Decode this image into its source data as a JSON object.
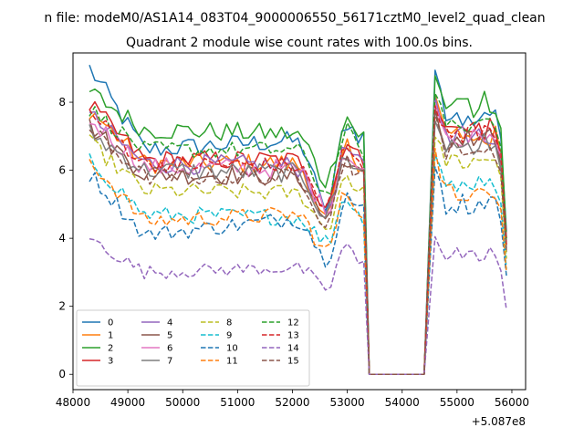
{
  "header": {
    "suptitle": "n file: modeM0/AS1A14_083T04_9000006550_56171cztM0_level2_quad_clean",
    "title": "Quadrant 2 module wise count rates with 100.0s bins."
  },
  "chart_data": {
    "type": "line",
    "title": "Quadrant 2 module wise count rates with 100.0s bins.",
    "xlabel": "",
    "ylabel": "",
    "x_offset_label": "+5.087e8",
    "xlim": [
      48000,
      56250
    ],
    "ylim": [
      -0.45,
      9.45
    ],
    "x_ticks": [
      48000,
      49000,
      50000,
      51000,
      52000,
      53000,
      54000,
      55000,
      56000
    ],
    "x_tick_labels": [
      "48000",
      "49000",
      "50000",
      "51000",
      "52000",
      "53000",
      "54000",
      "55000",
      "56000"
    ],
    "y_ticks": [
      0,
      2,
      4,
      6,
      8
    ],
    "y_tick_labels": [
      "0",
      "2",
      "4",
      "6",
      "8"
    ],
    "grid": false,
    "legend": {
      "placement": "lower-left",
      "columns": 4
    },
    "time_axis": {
      "segment1": {
        "start": 48300,
        "end": 53300,
        "step": 100
      },
      "gap": [
        [
          53400,
          0
        ],
        [
          53500,
          0
        ],
        [
          53600,
          0
        ],
        [
          53700,
          0
        ],
        [
          53800,
          0
        ],
        [
          53900,
          0
        ],
        [
          54000,
          0
        ],
        [
          54100,
          0
        ],
        [
          54200,
          0
        ],
        [
          54300,
          0
        ],
        [
          54400,
          0
        ]
      ],
      "segment2": {
        "start": 54600,
        "end": 55900,
        "step": 100
      }
    },
    "series": [
      {
        "name": "0",
        "color": "#1f77b4",
        "style": "solid",
        "seg1_start": 9.0,
        "seg1_mid": 6.6,
        "seg1_end": 7.0,
        "seg1_dip": 4.9,
        "seg2_start": 9.0,
        "seg2_end": 4.2,
        "seg2_level": 7.6,
        "noise": 0.3
      },
      {
        "name": "1",
        "color": "#ff7f0e",
        "style": "solid",
        "seg1_start": 7.8,
        "seg1_mid": 6.2,
        "seg1_end": 6.2,
        "seg1_dip": 4.5,
        "seg2_start": 8.2,
        "seg2_end": 3.8,
        "seg2_level": 7.0,
        "noise": 0.3
      },
      {
        "name": "2",
        "color": "#2ca02c",
        "style": "solid",
        "seg1_start": 8.3,
        "seg1_mid": 7.2,
        "seg1_end": 7.0,
        "seg1_dip": 5.7,
        "seg2_start": 8.7,
        "seg2_end": 4.0,
        "seg2_level": 7.9,
        "noise": 0.3
      },
      {
        "name": "3",
        "color": "#d62728",
        "style": "solid",
        "seg1_start": 7.9,
        "seg1_mid": 6.3,
        "seg1_end": 6.3,
        "seg1_dip": 5.0,
        "seg2_start": 8.2,
        "seg2_end": 4.0,
        "seg2_level": 7.2,
        "noise": 0.3
      },
      {
        "name": "4",
        "color": "#9467bd",
        "style": "solid",
        "seg1_start": 7.6,
        "seg1_mid": 6.2,
        "seg1_end": 6.1,
        "seg1_dip": 4.8,
        "seg2_start": 8.0,
        "seg2_end": 3.9,
        "seg2_level": 7.1,
        "noise": 0.3
      },
      {
        "name": "5",
        "color": "#8c564b",
        "style": "solid",
        "seg1_start": 7.3,
        "seg1_mid": 5.9,
        "seg1_end": 5.8,
        "seg1_dip": 4.6,
        "seg2_start": 7.6,
        "seg2_end": 3.6,
        "seg2_level": 6.8,
        "noise": 0.3
      },
      {
        "name": "6",
        "color": "#e377c2",
        "style": "solid",
        "seg1_start": 7.5,
        "seg1_mid": 6.1,
        "seg1_end": 6.0,
        "seg1_dip": 4.9,
        "seg2_start": 7.8,
        "seg2_end": 3.8,
        "seg2_level": 7.0,
        "noise": 0.3
      },
      {
        "name": "7",
        "color": "#7f7f7f",
        "style": "solid",
        "seg1_start": 7.1,
        "seg1_mid": 6.0,
        "seg1_end": 5.9,
        "seg1_dip": 4.7,
        "seg2_start": 7.5,
        "seg2_end": 3.7,
        "seg2_level": 6.7,
        "noise": 0.3
      },
      {
        "name": "8",
        "color": "#bcbd22",
        "style": "dashed",
        "seg1_start": 6.8,
        "seg1_mid": 5.4,
        "seg1_end": 5.3,
        "seg1_dip": 4.3,
        "seg2_start": 7.2,
        "seg2_end": 3.4,
        "seg2_level": 6.2,
        "noise": 0.25
      },
      {
        "name": "9",
        "color": "#17becf",
        "style": "dashed",
        "seg1_start": 6.3,
        "seg1_mid": 4.7,
        "seg1_end": 4.6,
        "seg1_dip": 3.9,
        "seg2_start": 6.6,
        "seg2_end": 3.1,
        "seg2_level": 5.6,
        "noise": 0.25
      },
      {
        "name": "10",
        "color": "#1f77b4",
        "style": "dashed",
        "seg1_start": 5.9,
        "seg1_mid": 4.1,
        "seg1_end": 4.8,
        "seg1_dip": 3.4,
        "seg2_start": 6.1,
        "seg2_end": 2.9,
        "seg2_level": 5.0,
        "noise": 0.25
      },
      {
        "name": "11",
        "color": "#ff7f0e",
        "style": "dashed",
        "seg1_start": 6.3,
        "seg1_mid": 4.5,
        "seg1_end": 4.8,
        "seg1_dip": 3.6,
        "seg2_start": 6.5,
        "seg2_end": 3.0,
        "seg2_level": 5.4,
        "noise": 0.25
      },
      {
        "name": "12",
        "color": "#2ca02c",
        "style": "dashed",
        "seg1_start": 7.8,
        "seg1_mid": 6.6,
        "seg1_end": 6.6,
        "seg1_dip": 5.3,
        "seg2_start": 8.1,
        "seg2_end": 3.9,
        "seg2_level": 7.4,
        "noise": 0.25
      },
      {
        "name": "13",
        "color": "#d62728",
        "style": "dashed",
        "seg1_start": 7.7,
        "seg1_mid": 6.2,
        "seg1_end": 6.1,
        "seg1_dip": 4.9,
        "seg2_start": 8.0,
        "seg2_end": 3.8,
        "seg2_level": 7.1,
        "noise": 0.25
      },
      {
        "name": "14",
        "color": "#9467bd",
        "style": "dashed",
        "seg1_start": 4.0,
        "seg1_mid": 3.0,
        "seg1_end": 3.2,
        "seg1_dip": 2.5,
        "seg2_start": 4.1,
        "seg2_end": 1.9,
        "seg2_level": 3.5,
        "noise": 0.2
      },
      {
        "name": "15",
        "color": "#8c564b",
        "style": "dashed",
        "seg1_start": 7.2,
        "seg1_mid": 5.8,
        "seg1_end": 5.8,
        "seg1_dip": 4.5,
        "seg2_start": 7.5,
        "seg2_end": 3.6,
        "seg2_level": 6.6,
        "noise": 0.25
      }
    ]
  }
}
